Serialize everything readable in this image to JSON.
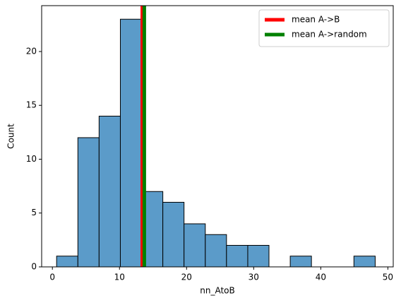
{
  "chart_data": {
    "type": "histogram",
    "xlabel": "nn_AtoB",
    "ylabel": "Count",
    "bins": [
      0.63,
      3.8,
      6.96,
      10.13,
      13.29,
      16.46,
      19.62,
      22.79,
      25.95,
      29.12,
      32.28,
      35.45,
      38.61,
      41.78,
      44.94,
      48.11
    ],
    "values": [
      1,
      12,
      14,
      23,
      7,
      6,
      4,
      3,
      2,
      2,
      0,
      1,
      0,
      0,
      1
    ],
    "color": "#5b9bc9",
    "vlines": [
      {
        "name": "mean A->B",
        "color": "#ff0000",
        "value": 13.4
      },
      {
        "name": "mean A->random",
        "color": "#008000",
        "value": 13.7
      }
    ],
    "xlim": [
      -1.6,
      50.8
    ],
    "ylim": [
      0,
      24.26
    ],
    "xticks": [
      0,
      10,
      20,
      30,
      40,
      50
    ],
    "yticks": [
      0,
      5,
      10,
      15,
      20
    ],
    "grid": false,
    "legend": "upper right"
  }
}
